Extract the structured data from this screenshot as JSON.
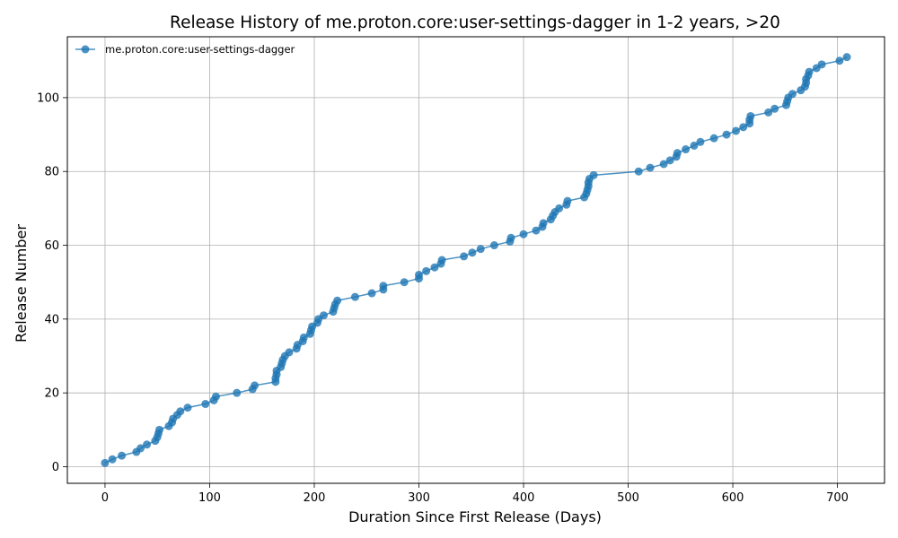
{
  "chart_data": {
    "type": "line",
    "title": "Release History of me.proton.core:user-settings-dagger in 1-2 years, >20",
    "xlabel": "Duration Since First Release (Days)",
    "ylabel": "Release Number",
    "xlim": [
      -36,
      745
    ],
    "ylim": [
      -4.5,
      116.5
    ],
    "xticks": [
      0,
      100,
      200,
      300,
      400,
      500,
      600,
      700
    ],
    "yticks": [
      0,
      20,
      40,
      60,
      80,
      100
    ],
    "grid": true,
    "legend_position": "top-left",
    "color": "#1f77b4",
    "series": [
      {
        "name": "me.proton.core:user-settings-dagger",
        "x": [
          0,
          7,
          16,
          30,
          34,
          40,
          48,
          50,
          51,
          52,
          61,
          64,
          65,
          69,
          72,
          79,
          96,
          104,
          106,
          126,
          141,
          143,
          163,
          163,
          164,
          164,
          168,
          169,
          170,
          172,
          176,
          183,
          184,
          189,
          190,
          196,
          197,
          198,
          203,
          204,
          209,
          218,
          219,
          220,
          222,
          239,
          255,
          266,
          266,
          286,
          300,
          300,
          307,
          315,
          321,
          322,
          343,
          351,
          359,
          372,
          387,
          388,
          400,
          412,
          418,
          419,
          426,
          428,
          430,
          434,
          441,
          442,
          458,
          460,
          461,
          462,
          462,
          463,
          467,
          510,
          521,
          534,
          540,
          546,
          547,
          555,
          563,
          569,
          582,
          594,
          603,
          610,
          616,
          616,
          617,
          634,
          640,
          651,
          652,
          653,
          657,
          665,
          669,
          670,
          670,
          672,
          673,
          680,
          685,
          702,
          709
        ],
        "y": [
          1,
          2,
          3,
          4,
          5,
          6,
          7,
          8,
          9,
          10,
          11,
          12,
          13,
          14,
          15,
          16,
          17,
          18,
          19,
          20,
          21,
          22,
          23,
          24,
          25,
          26,
          27,
          28,
          29,
          30,
          31,
          32,
          33,
          34,
          35,
          36,
          37,
          38,
          39,
          40,
          41,
          42,
          43,
          44,
          45,
          46,
          47,
          48,
          49,
          50,
          51,
          52,
          53,
          54,
          55,
          56,
          57,
          58,
          59,
          60,
          61,
          62,
          63,
          64,
          65,
          66,
          67,
          68,
          69,
          70,
          71,
          72,
          73,
          74,
          75,
          76,
          77,
          78,
          79,
          80,
          81,
          82,
          83,
          84,
          85,
          86,
          87,
          88,
          89,
          90,
          91,
          92,
          93,
          94,
          95,
          96,
          97,
          98,
          99,
          100,
          101,
          102,
          103,
          104,
          105,
          106,
          107,
          108,
          109,
          110,
          111
        ]
      }
    ]
  }
}
